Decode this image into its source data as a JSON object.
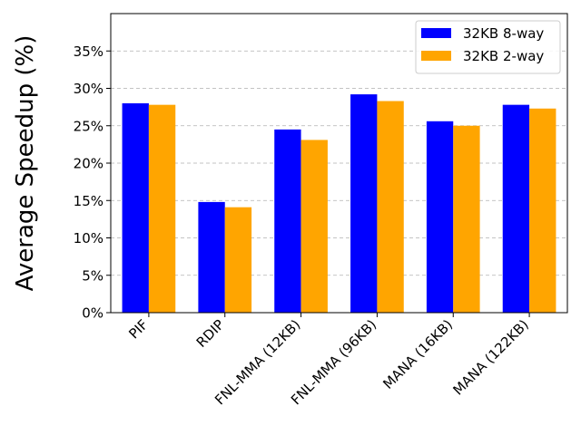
{
  "chart_data": {
    "type": "bar",
    "title": "",
    "xlabel": "",
    "ylabel": "Average Speedup (%)",
    "categories": [
      "PIF",
      "RDIP",
      "FNL-MMA (12KB)",
      "FNL-MMA (96KB)",
      "MANA (16KB)",
      "MANA (122KB)"
    ],
    "series": [
      {
        "name": "32KB 8-way",
        "color": "#0000ff",
        "values": [
          28.0,
          14.8,
          24.5,
          29.2,
          25.6,
          27.8
        ]
      },
      {
        "name": "32KB 2-way",
        "color": "#ffa500",
        "values": [
          27.8,
          14.1,
          23.1,
          28.3,
          25.0,
          27.3
        ]
      }
    ],
    "ylim": [
      0,
      40
    ],
    "yticks": [
      0,
      5,
      10,
      15,
      20,
      25,
      30,
      35
    ],
    "ytick_labels": [
      "0%",
      "5%",
      "10%",
      "15%",
      "20%",
      "25%",
      "30%",
      "35%"
    ],
    "grid": "y-dashed",
    "legend_position": "top-right"
  }
}
